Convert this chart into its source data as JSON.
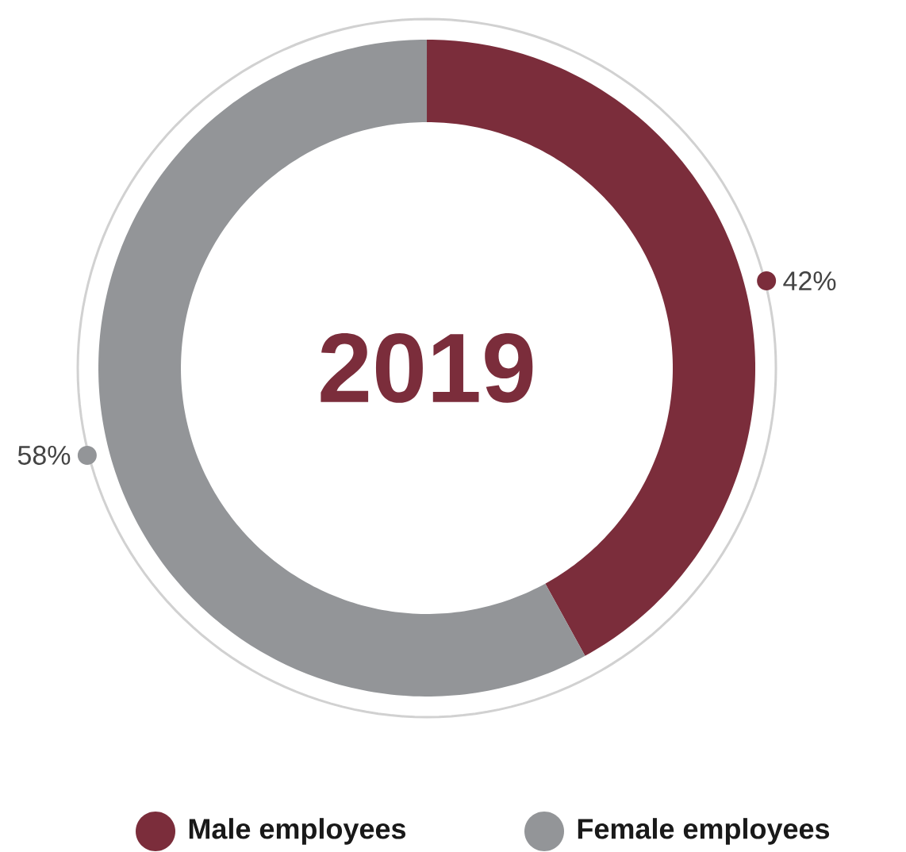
{
  "chart_data": {
    "type": "donut",
    "title": "2019",
    "categories": [
      "Male employees",
      "Female employees"
    ],
    "values": [
      42,
      58
    ],
    "colors": [
      "#7b2d3b",
      "#939598"
    ],
    "value_labels": [
      "42%",
      "58%"
    ],
    "legend": "bottom"
  }
}
